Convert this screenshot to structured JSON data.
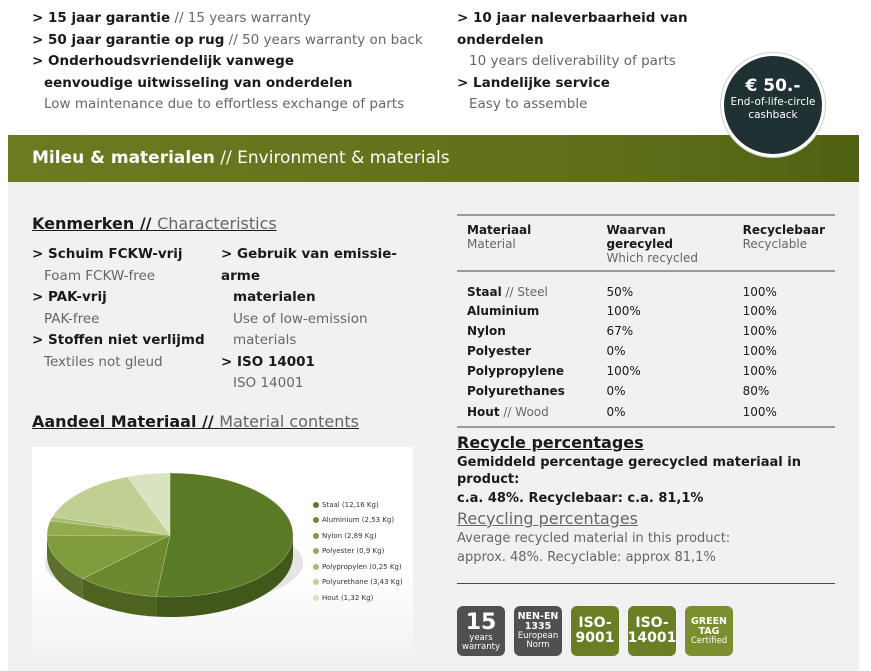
{
  "features_left": [
    {
      "nl": "15 jaar garantie",
      "en": "15 years warranty"
    },
    {
      "nl": "50 jaar garantie op rug",
      "en": "50 years warranty on back"
    },
    {
      "nl": "Onderhoudsvriendelijk vanwege",
      "nl2": "eenvoudige uitwisseling van onderdelen",
      "en": "Low maintenance due to effortless exchange of parts"
    }
  ],
  "features_right": [
    {
      "nl": "10 jaar naleverbaarheid van onderdelen",
      "en": "10 years deliverability of parts"
    },
    {
      "nl": "Landelijke service",
      "en": "Easy to assemble"
    }
  ],
  "cashback": {
    "amount": "€ 50.-",
    "line1": "End-of-life-circle",
    "line2": "cashback"
  },
  "section": {
    "nl": "Mileu & materialen",
    "sep": "//",
    "en": "Environment & materials"
  },
  "characteristics": {
    "title_nl": "Kenmerken",
    "sep": "//",
    "title_en": "Characteristics",
    "left": [
      {
        "nl": "Schuim FCKW-vrij",
        "en": "Foam FCKW-free"
      },
      {
        "nl": "PAK-vrij",
        "en": "PAK-free"
      },
      {
        "nl": "Stoffen niet verlijmd",
        "en": "Textiles not gleud"
      }
    ],
    "right": [
      {
        "nl": "Gebruik van emissie-arme",
        "nl2": "materialen",
        "en": "Use of low-emission",
        "en2": "materials"
      },
      {
        "nl": "ISO 14001",
        "en": "ISO 14001"
      }
    ]
  },
  "materials_table": {
    "headers": [
      {
        "nl": "Materiaal",
        "en": "Material"
      },
      {
        "nl": "Waarvan gerecyled",
        "en": "Which recycled"
      },
      {
        "nl": "Recyclebaar",
        "en": "Recyclable"
      }
    ],
    "rows": [
      {
        "name": "Staal",
        "en": "Steel",
        "recycled": "50%",
        "recyclable": "100%"
      },
      {
        "name": "Aluminium",
        "en": "",
        "recycled": "100%",
        "recyclable": "100%"
      },
      {
        "name": "Nylon",
        "en": "",
        "recycled": "67%",
        "recyclable": "100%"
      },
      {
        "name": "Polyester",
        "en": "",
        "recycled": "0%",
        "recyclable": "100%"
      },
      {
        "name": "Polypropylene",
        "en": "",
        "recycled": "100%",
        "recyclable": "100%"
      },
      {
        "name": "Polyurethanes",
        "en": "",
        "recycled": "0%",
        "recyclable": "80%"
      },
      {
        "name": "Hout",
        "en": "Wood",
        "recycled": "0%",
        "recyclable": "100%"
      }
    ]
  },
  "recycle_nl": {
    "title": "Recycle percentages",
    "line1": "Gemiddeld percentage gerecycled materiaal in product:",
    "line2": "c.a. 48%. Recyclebaar: c.a. 81,1%"
  },
  "recycle_en": {
    "title": "Recycling percentages",
    "line1": "Average recycled material in this product:",
    "line2": "approx. 48%. Recyclable: approx 81,1%"
  },
  "contents": {
    "title_nl": "Aandeel Materiaal",
    "sep": "//",
    "title_en": "Material contents"
  },
  "chart_data": {
    "type": "pie",
    "unit": "Kg",
    "slices": [
      {
        "label": "Staal (12,16 Kg)",
        "value": 12.16,
        "color": "#5b7a25"
      },
      {
        "label": "Aluminium (2,53 Kg)",
        "value": 2.53,
        "color": "#6c8a2d"
      },
      {
        "label": "Nylon (2,89 Kg)",
        "value": 2.89,
        "color": "#7f9b3c"
      },
      {
        "label": "Polyester (0,9 Kg)",
        "value": 0.9,
        "color": "#92ab50"
      },
      {
        "label": "Polypropylen (0,25 Kg)",
        "value": 0.25,
        "color": "#a6bd6c"
      },
      {
        "label": "Polyurethane (3,43 Kg)",
        "value": 3.43,
        "color": "#bfd092"
      },
      {
        "label": "Hout (1,32 Kg)",
        "value": 1.32,
        "color": "#d9e3bf"
      }
    ]
  },
  "badges": [
    {
      "top": "15",
      "mid": "years",
      "bot": "warranty"
    },
    {
      "top": "NEN-EN",
      "mid": "1335",
      "bot": "European",
      "bot2": "Norm"
    },
    {
      "top": "ISO-",
      "mid": "9001"
    },
    {
      "top": "ISO-",
      "mid": "14001"
    },
    {
      "top": "GREEN",
      "mid": "TAG",
      "bot": "Certified"
    }
  ]
}
